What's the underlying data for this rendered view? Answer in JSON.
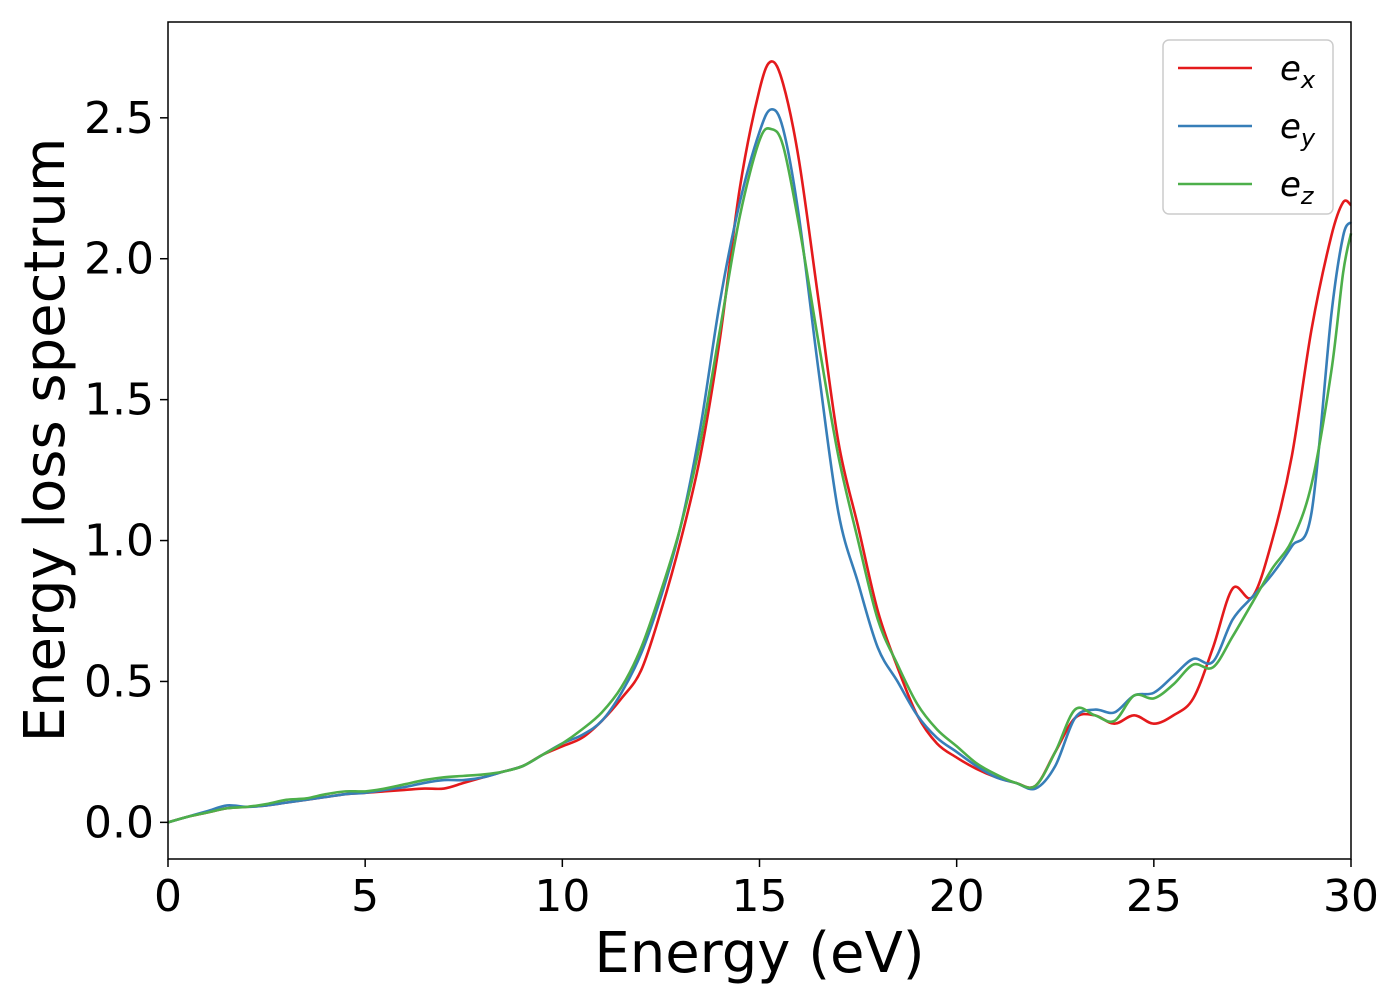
{
  "chart_data": {
    "type": "line",
    "title": "",
    "xlabel": "Energy (eV)",
    "ylabel": "Energy loss spectrum",
    "xlim": [
      0,
      30
    ],
    "ylim": [
      -0.13,
      2.84
    ],
    "xticks": [
      0,
      5,
      10,
      15,
      20,
      25,
      30
    ],
    "xtick_labels": [
      "0",
      "5",
      "10",
      "15",
      "20",
      "25",
      "30"
    ],
    "yticks": [
      0.0,
      0.5,
      1.0,
      1.5,
      2.0,
      2.5
    ],
    "ytick_labels": [
      "0.0",
      "0.5",
      "1.0",
      "1.5",
      "2.0",
      "2.5"
    ],
    "grid": false,
    "legend_position": "top-right",
    "series": [
      {
        "name": "e_x",
        "label_base": "e",
        "label_sub": "x",
        "color": "#e41a1c",
        "x": [
          0,
          0.5,
          1,
          1.5,
          2,
          2.5,
          3,
          3.5,
          4,
          4.5,
          5,
          5.5,
          6,
          6.5,
          7,
          7.5,
          8,
          8.5,
          9,
          9.5,
          10,
          10.5,
          11,
          11.5,
          12,
          12.5,
          13,
          13.5,
          14,
          14.5,
          15,
          15.3,
          15.6,
          16,
          16.5,
          17,
          17.5,
          18,
          18.5,
          19,
          19.5,
          20,
          20.5,
          21,
          21.5,
          22,
          22.5,
          23,
          23.5,
          24,
          24.5,
          25,
          25.5,
          26,
          26.5,
          27,
          27.5,
          28,
          28.5,
          29,
          29.5,
          29.8,
          30
        ],
        "y": [
          0.0,
          0.02,
          0.035,
          0.05,
          0.055,
          0.06,
          0.07,
          0.08,
          0.09,
          0.1,
          0.105,
          0.11,
          0.115,
          0.12,
          0.12,
          0.14,
          0.16,
          0.18,
          0.2,
          0.24,
          0.27,
          0.3,
          0.36,
          0.44,
          0.54,
          0.75,
          1.0,
          1.3,
          1.72,
          2.25,
          2.6,
          2.7,
          2.62,
          2.35,
          1.85,
          1.35,
          1.05,
          0.75,
          0.55,
          0.38,
          0.28,
          0.23,
          0.19,
          0.16,
          0.14,
          0.13,
          0.25,
          0.37,
          0.38,
          0.35,
          0.38,
          0.35,
          0.38,
          0.44,
          0.62,
          0.83,
          0.8,
          1.0,
          1.3,
          1.75,
          2.08,
          2.2,
          2.19
        ]
      },
      {
        "name": "e_y",
        "label_base": "e",
        "label_sub": "y",
        "color": "#377eb8",
        "x": [
          0,
          0.5,
          1,
          1.5,
          2,
          2.5,
          3,
          3.5,
          4,
          4.5,
          5,
          5.5,
          6,
          6.5,
          7,
          7.5,
          8,
          8.5,
          9,
          9.5,
          10,
          10.5,
          11,
          11.5,
          12,
          12.5,
          13,
          13.5,
          14,
          14.5,
          15,
          15.3,
          15.6,
          16,
          16.5,
          17,
          17.5,
          18,
          18.5,
          19,
          19.5,
          20,
          20.5,
          21,
          21.5,
          22,
          22.5,
          23,
          23.5,
          24,
          24.5,
          25,
          25.5,
          26,
          26.5,
          27,
          27.5,
          28,
          28.5,
          29,
          29.5,
          29.8,
          30
        ],
        "y": [
          0.0,
          0.02,
          0.04,
          0.06,
          0.055,
          0.06,
          0.07,
          0.08,
          0.09,
          0.1,
          0.105,
          0.115,
          0.125,
          0.14,
          0.15,
          0.15,
          0.16,
          0.18,
          0.2,
          0.24,
          0.28,
          0.31,
          0.36,
          0.46,
          0.6,
          0.8,
          1.05,
          1.4,
          1.85,
          2.2,
          2.45,
          2.53,
          2.46,
          2.15,
          1.6,
          1.1,
          0.85,
          0.62,
          0.5,
          0.38,
          0.3,
          0.25,
          0.2,
          0.16,
          0.14,
          0.12,
          0.2,
          0.37,
          0.4,
          0.39,
          0.45,
          0.46,
          0.52,
          0.58,
          0.57,
          0.72,
          0.8,
          0.88,
          0.98,
          1.1,
          1.8,
          2.08,
          2.13
        ]
      },
      {
        "name": "e_z",
        "label_base": "e",
        "label_sub": "z",
        "color": "#4daf4a",
        "x": [
          0,
          0.5,
          1,
          1.5,
          2,
          2.5,
          3,
          3.5,
          4,
          4.5,
          5,
          5.5,
          6,
          6.5,
          7,
          7.5,
          8,
          8.5,
          9,
          9.5,
          10,
          10.5,
          11,
          11.5,
          12,
          12.5,
          13,
          13.5,
          14,
          14.5,
          15,
          15.3,
          15.6,
          16,
          16.5,
          17,
          17.5,
          18,
          18.5,
          19,
          19.5,
          20,
          20.5,
          21,
          21.5,
          22,
          22.5,
          23,
          23.5,
          24,
          24.5,
          25,
          25.5,
          26,
          26.5,
          27,
          27.5,
          28,
          28.5,
          29,
          29.5,
          29.8,
          30
        ],
        "y": [
          0.0,
          0.02,
          0.035,
          0.05,
          0.055,
          0.065,
          0.08,
          0.085,
          0.1,
          0.11,
          0.11,
          0.12,
          0.135,
          0.15,
          0.16,
          0.165,
          0.17,
          0.18,
          0.2,
          0.24,
          0.28,
          0.33,
          0.39,
          0.48,
          0.62,
          0.82,
          1.05,
          1.35,
          1.75,
          2.15,
          2.42,
          2.46,
          2.4,
          2.12,
          1.7,
          1.3,
          1.0,
          0.72,
          0.56,
          0.42,
          0.33,
          0.27,
          0.21,
          0.17,
          0.14,
          0.13,
          0.25,
          0.4,
          0.38,
          0.36,
          0.45,
          0.44,
          0.49,
          0.56,
          0.55,
          0.66,
          0.78,
          0.9,
          1.0,
          1.2,
          1.6,
          1.95,
          2.09
        ]
      }
    ]
  }
}
